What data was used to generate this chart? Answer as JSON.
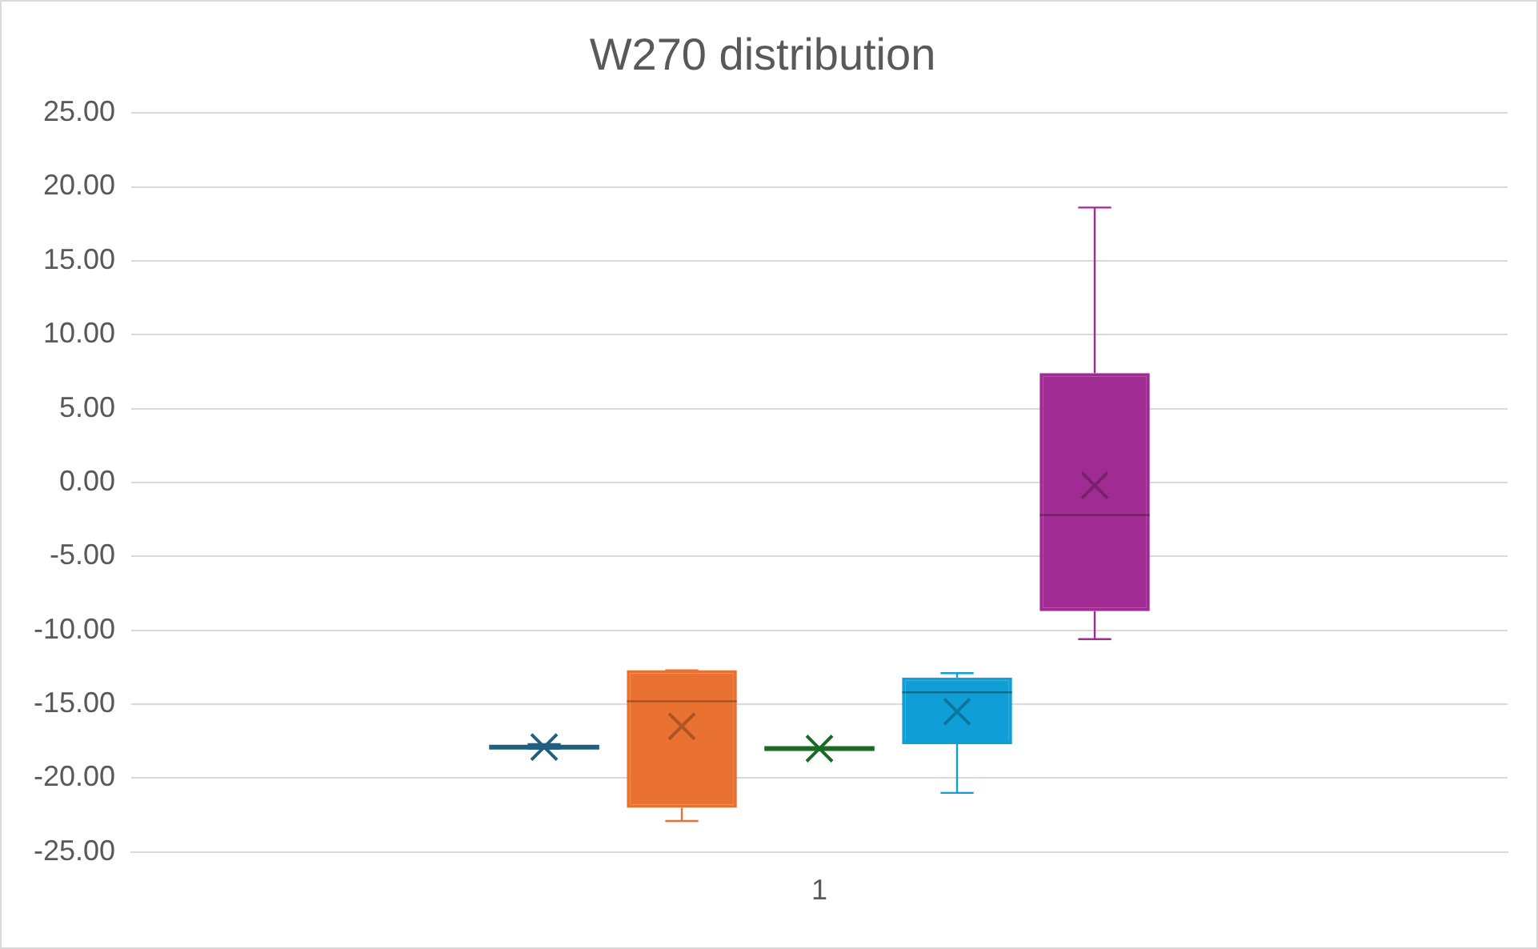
{
  "chart_data": {
    "type": "box",
    "title": "W270 distribution",
    "categories": [
      "1"
    ],
    "ylim": [
      -25,
      25
    ],
    "yticks": [
      {
        "value": 25,
        "label": "25.00"
      },
      {
        "value": 20,
        "label": "20.00"
      },
      {
        "value": 15,
        "label": "15.00"
      },
      {
        "value": 10,
        "label": "10.00"
      },
      {
        "value": 5,
        "label": "5.00"
      },
      {
        "value": 0,
        "label": "0.00"
      },
      {
        "value": -5,
        "label": "-5.00"
      },
      {
        "value": -10,
        "label": "-10.00"
      },
      {
        "value": -15,
        "label": "-15.00"
      },
      {
        "value": -20,
        "label": "-20.00"
      },
      {
        "value": -25,
        "label": "-25.00"
      }
    ],
    "grid": "y",
    "legend": false,
    "series": [
      {
        "color": "#215f80",
        "boxes": [
          {
            "low": -18.0,
            "q1": -17.9,
            "median": -17.9,
            "q3": -17.9,
            "high": -17.7,
            "mean": -17.9
          }
        ]
      },
      {
        "color": "#e97132",
        "boxes": [
          {
            "low": -22.9,
            "q1": -22.0,
            "median": -14.8,
            "q3": -12.7,
            "high": -12.7,
            "mean": -16.5
          }
        ]
      },
      {
        "color": "#196b24",
        "boxes": [
          {
            "low": -18.0,
            "q1": -18.0,
            "median": -18.0,
            "q3": -18.0,
            "high": -18.0,
            "mean": -18.0
          }
        ]
      },
      {
        "color": "#0f9ed5",
        "boxes": [
          {
            "low": -21.0,
            "q1": -17.7,
            "median": -14.2,
            "q3": -13.2,
            "high": -12.9,
            "mean": -15.5
          }
        ]
      },
      {
        "color": "#a02b93",
        "boxes": [
          {
            "low": -10.6,
            "q1": -8.7,
            "median": -2.2,
            "q3": 7.4,
            "high": 18.6,
            "mean": -0.2
          }
        ]
      }
    ]
  }
}
